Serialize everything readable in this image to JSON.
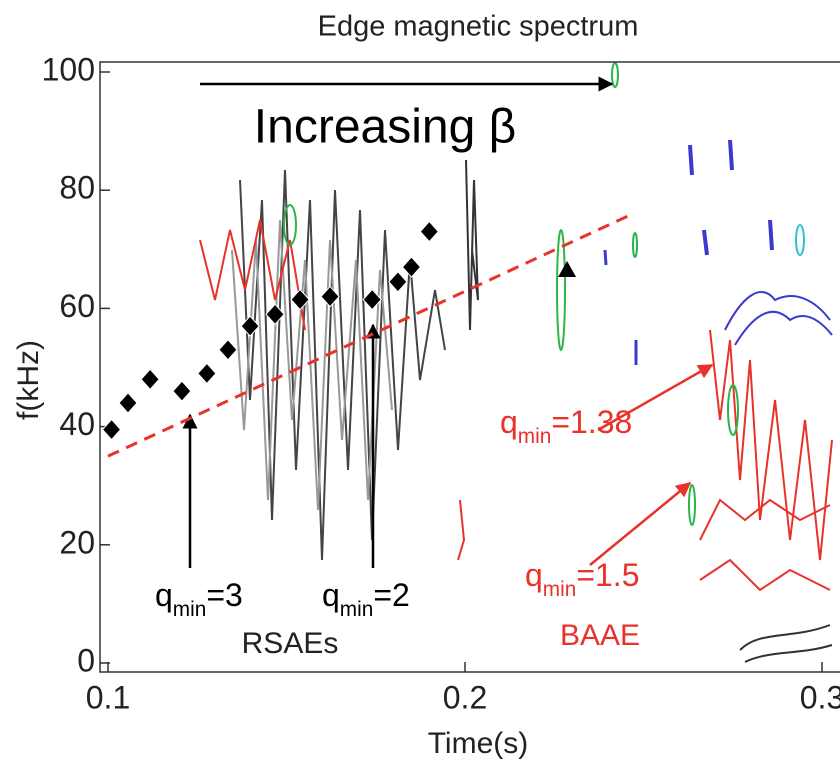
{
  "chart_data": {
    "type": "scatter",
    "title": "Edge magnetic spectrum",
    "x_label": "Time(s)",
    "y_label": "f(kHz)",
    "xlim": [
      0.1,
      0.3
    ],
    "xticks": [
      0.1,
      0.2,
      0.3
    ],
    "ylim": [
      0,
      100
    ],
    "yticks": [
      0,
      20,
      40,
      60,
      80,
      100
    ],
    "series": [
      {
        "type": "scatter",
        "marker": "diamond",
        "color": "#000000",
        "x": [
          0.101,
          0.1056,
          0.1118,
          0.1207,
          0.1277,
          0.1336,
          0.1398,
          0.1468,
          0.1538,
          0.1622,
          0.174,
          0.1812,
          0.185,
          0.19
        ],
        "values": [
          39.5,
          44,
          48,
          46,
          49,
          53,
          57,
          59,
          61.5,
          62,
          61.5,
          64.5,
          67,
          73
        ]
      },
      {
        "type": "line",
        "dashed": true,
        "color": "#e8322a",
        "x": [
          0.1,
          0.247
        ],
        "values": [
          35,
          76
        ]
      },
      {
        "type": "scatter",
        "marker": "triangle",
        "color": "#000000",
        "x": [
          0.2286
        ],
        "values": [
          66.5
        ]
      }
    ],
    "annotations": [
      {
        "text": "Increasing β",
        "color": "#000000"
      },
      {
        "base": "q",
        "sub": "min",
        "tail": "=3",
        "color": "#000000"
      },
      {
        "base": "q",
        "sub": "min",
        "tail": "=2",
        "color": "#000000"
      },
      {
        "text": "RSAEs",
        "color": "#222222"
      },
      {
        "base": "q",
        "sub": "min",
        "tail": "=1.38",
        "color": "#e8322a"
      },
      {
        "base": "q",
        "sub": "min",
        "tail": "=1.5",
        "color": "#e8322a"
      },
      {
        "text": "BAAE",
        "color": "#e8322a"
      }
    ]
  }
}
